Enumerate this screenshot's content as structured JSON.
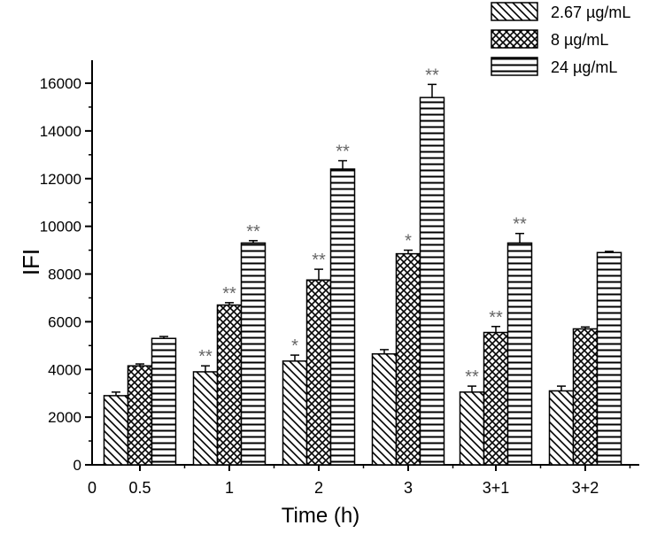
{
  "chart_data": {
    "type": "bar",
    "title": "",
    "xlabel": "Time (h)",
    "ylabel": "IFI",
    "categories": [
      "0.5",
      "1",
      "2",
      "3",
      "3+1",
      "3+2"
    ],
    "x_origin_label": "0",
    "ylim": [
      0,
      16500
    ],
    "yticks": [
      "0",
      "2000",
      "4000",
      "6000",
      "8000",
      "10000",
      "12000",
      "14000",
      "16000"
    ],
    "series": [
      {
        "name": "2.67 µg/mL",
        "pattern": "diagonal",
        "values": [
          2900,
          3900,
          4350,
          4650,
          3050,
          3100
        ],
        "errors": [
          150,
          250,
          250,
          180,
          250,
          200
        ],
        "significance": [
          "",
          "**",
          "*",
          "",
          "**",
          ""
        ]
      },
      {
        "name": "8 µg/mL",
        "pattern": "crosshatch",
        "values": [
          4150,
          6700,
          7750,
          8850,
          5550,
          5700
        ],
        "errors": [
          80,
          100,
          450,
          150,
          250,
          80
        ],
        "significance": [
          "",
          "**",
          "**",
          "*",
          "**",
          ""
        ]
      },
      {
        "name": "24 µg/mL",
        "pattern": "horizontal",
        "values": [
          5300,
          9300,
          12400,
          15400,
          9300,
          8900
        ],
        "errors": [
          80,
          100,
          350,
          550,
          400,
          50
        ],
        "significance": [
          "",
          "**",
          "**",
          "**",
          "**",
          ""
        ]
      }
    ],
    "legend_position": "top-right",
    "colors": {
      "ink": "#000000",
      "fill": "#ffffff",
      "annotation": "#666666"
    }
  }
}
